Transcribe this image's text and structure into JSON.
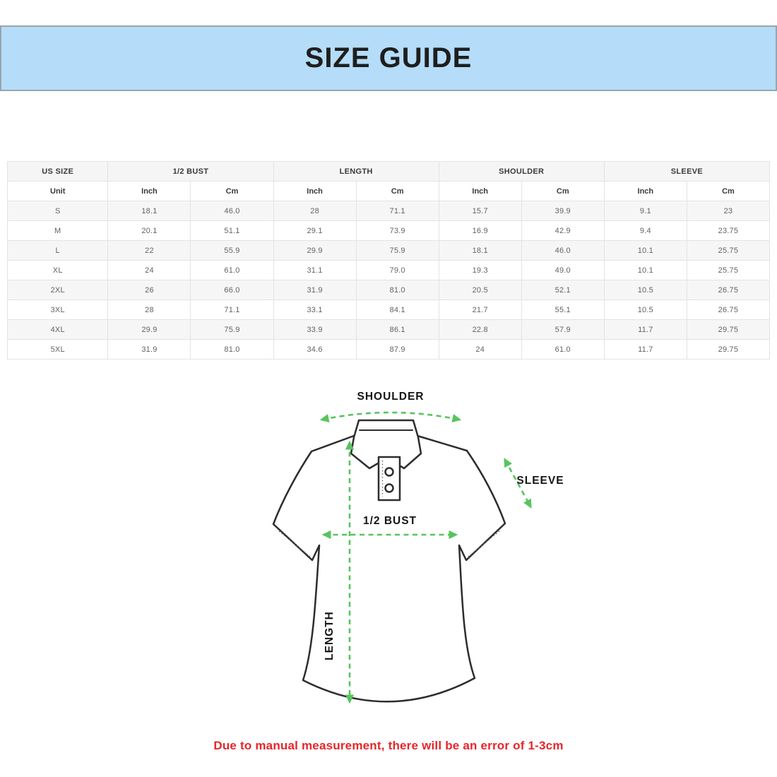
{
  "banner": {
    "title": "SIZE GUIDE",
    "bg_color": "#b5dcf8"
  },
  "table": {
    "group_headers": [
      {
        "label": "US SIZE"
      },
      {
        "label": "1/2 BUST"
      },
      {
        "label": "LENGTH"
      },
      {
        "label": "SHOULDER"
      },
      {
        "label": "SLEEVE"
      }
    ],
    "unit_row": [
      "Unit",
      "Inch",
      "Cm",
      "Inch",
      "Cm",
      "Inch",
      "Cm",
      "Inch",
      "Cm"
    ],
    "rows": [
      [
        "S",
        "18.1",
        "46.0",
        "28",
        "71.1",
        "15.7",
        "39.9",
        "9.1",
        "23"
      ],
      [
        "M",
        "20.1",
        "51.1",
        "29.1",
        "73.9",
        "16.9",
        "42.9",
        "9.4",
        "23.75"
      ],
      [
        "L",
        "22",
        "55.9",
        "29.9",
        "75.9",
        "18.1",
        "46.0",
        "10.1",
        "25.75"
      ],
      [
        "XL",
        "24",
        "61.0",
        "31.1",
        "79.0",
        "19.3",
        "49.0",
        "10.1",
        "25.75"
      ],
      [
        "2XL",
        "26",
        "66.0",
        "31.9",
        "81.0",
        "20.5",
        "52.1",
        "10.5",
        "26.75"
      ],
      [
        "3XL",
        "28",
        "71.1",
        "33.1",
        "84.1",
        "21.7",
        "55.1",
        "10.5",
        "26.75"
      ],
      [
        "4XL",
        "29.9",
        "75.9",
        "33.9",
        "86.1",
        "22.8",
        "57.9",
        "11.7",
        "29.75"
      ],
      [
        "5XL",
        "31.9",
        "81.0",
        "34.6",
        "87.9",
        "24",
        "61.0",
        "11.7",
        "29.75"
      ]
    ]
  },
  "diagram": {
    "shoulder_label": "SHOULDER",
    "sleeve_label": "SLEEVE",
    "bust_label": "1/2 BUST",
    "length_label": "LENGTH",
    "arrow_color": "#57c45e"
  },
  "disclaimer": {
    "text": "Due to manual measurement, there will be an error of 1-3cm",
    "color": "#e8252a"
  }
}
